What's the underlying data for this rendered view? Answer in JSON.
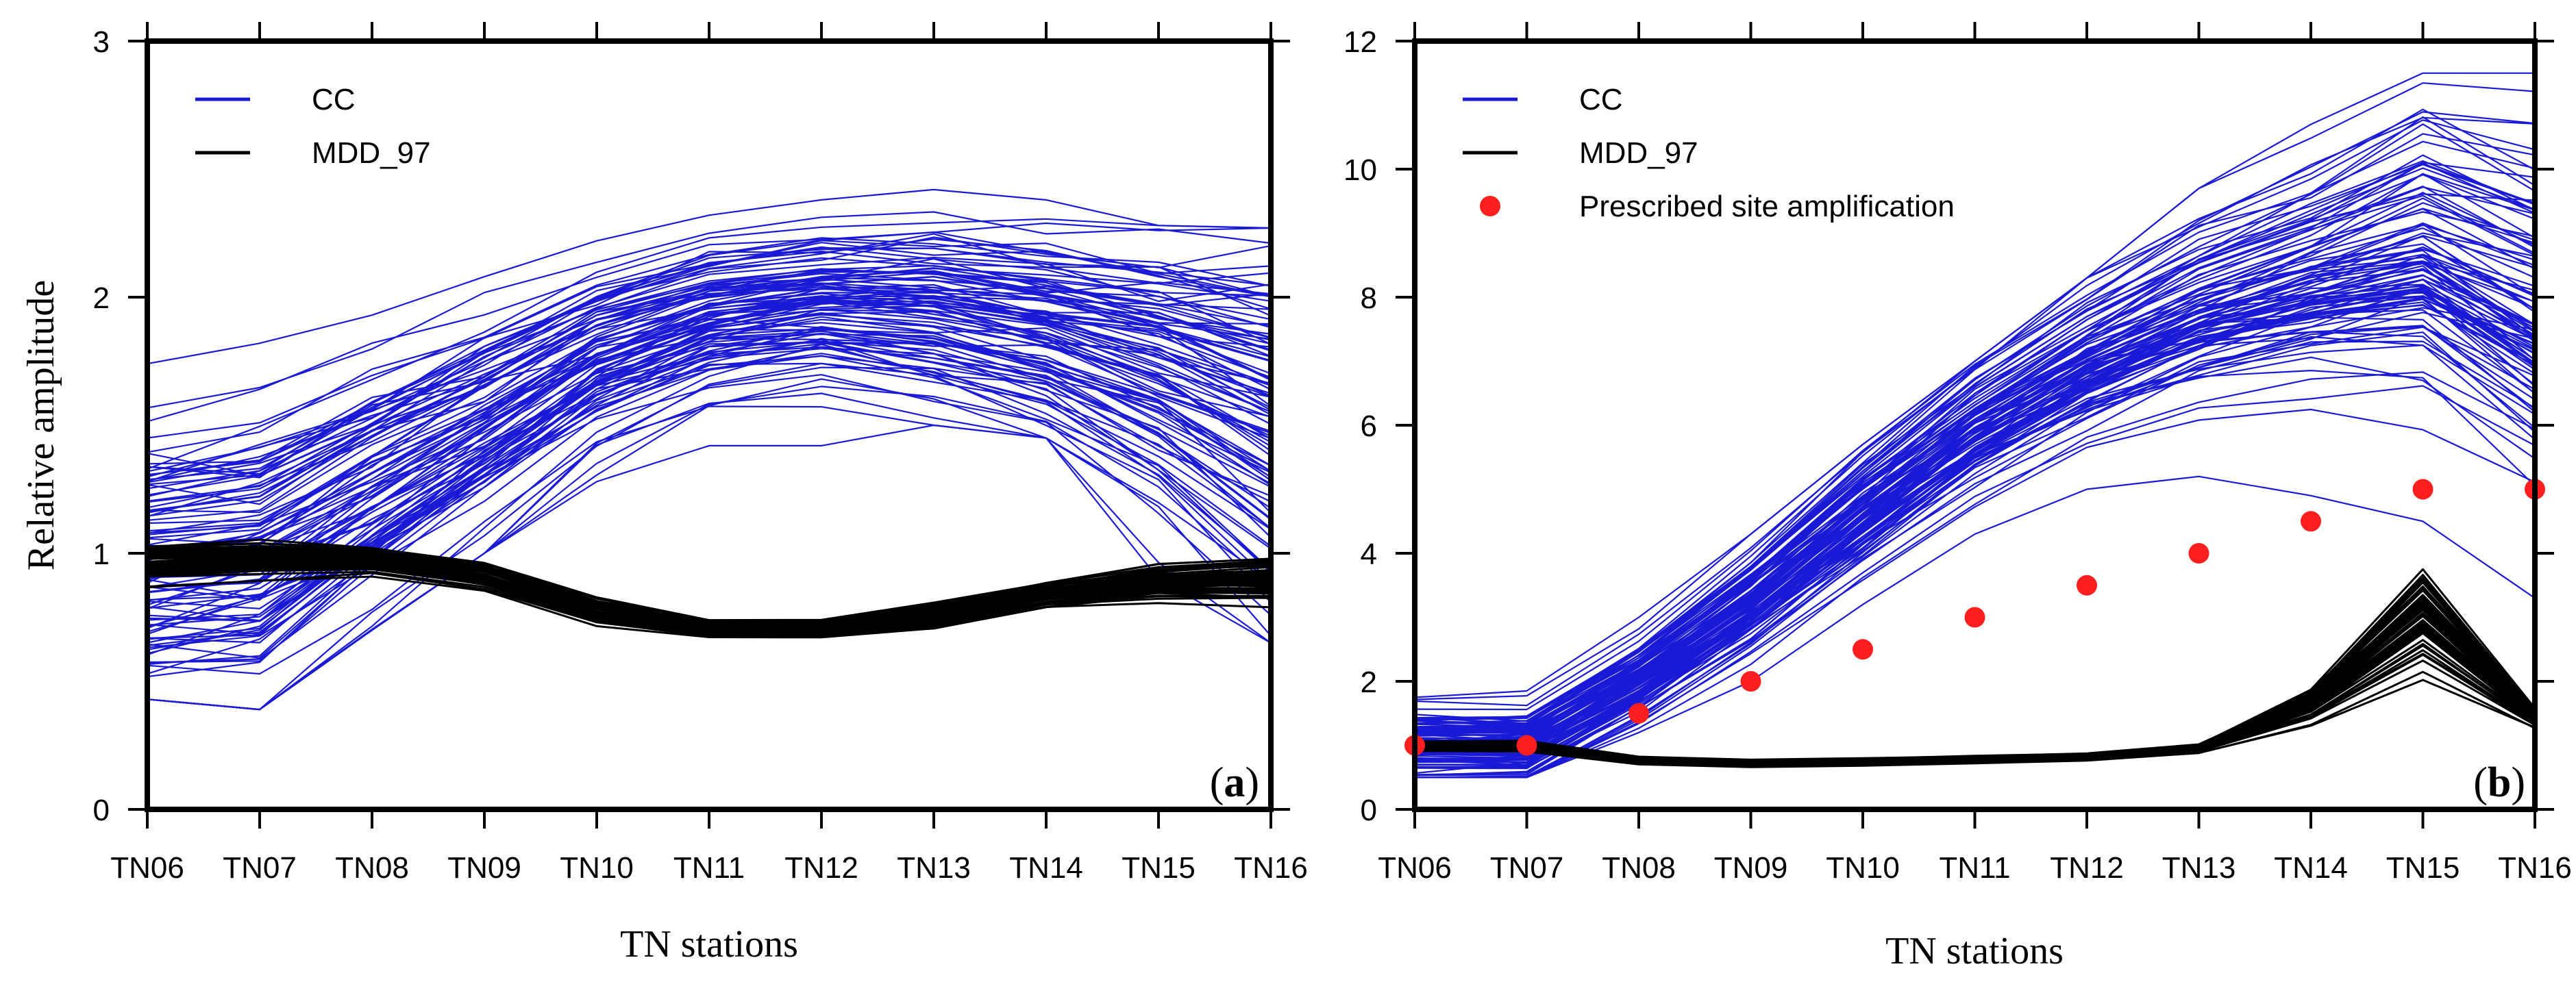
{
  "chart_data": [
    {
      "type": "line",
      "panel_label": "(a)",
      "panel_letter": "a",
      "categories": [
        "TN06",
        "TN07",
        "TN08",
        "TN09",
        "TN10",
        "TN11",
        "TN12",
        "TN13",
        "TN14",
        "TN15",
        "TN16"
      ],
      "ylabel": "Relative amplitude",
      "xlabel": "TN stations",
      "ylim": [
        0,
        3
      ],
      "yticks": [
        0,
        1,
        2,
        3
      ],
      "legend": [
        "CC",
        "MDD_97"
      ],
      "legend_position": "top-left",
      "series_groups": [
        {
          "name": "CC",
          "color": "#1a1ad6",
          "count": 100,
          "mean": [
            1.0,
            1.05,
            1.3,
            1.55,
            1.8,
            1.95,
            2.0,
            1.98,
            1.9,
            1.78,
            1.6
          ],
          "spread": [
            0.32,
            0.35,
            0.3,
            0.25,
            0.2,
            0.17,
            0.17,
            0.2,
            0.22,
            0.28,
            0.38
          ],
          "min": [
            0.43,
            0.39,
            0.7,
            1.0,
            1.28,
            1.42,
            1.42,
            1.5,
            1.45,
            0.9,
            0.65
          ],
          "max": [
            1.74,
            1.82,
            1.93,
            2.08,
            2.22,
            2.32,
            2.38,
            2.42,
            2.38,
            2.28,
            2.27
          ]
        },
        {
          "name": "MDD_97",
          "color": "#000000",
          "count": 60,
          "mean": [
            0.97,
            0.99,
            0.98,
            0.92,
            0.78,
            0.71,
            0.71,
            0.76,
            0.84,
            0.89,
            0.9
          ],
          "spread": [
            0.04,
            0.04,
            0.03,
            0.03,
            0.03,
            0.02,
            0.02,
            0.03,
            0.03,
            0.04,
            0.05
          ]
        }
      ]
    },
    {
      "type": "line",
      "panel_label": "(b)",
      "panel_letter": "b",
      "categories": [
        "TN06",
        "TN07",
        "TN08",
        "TN09",
        "TN10",
        "TN11",
        "TN12",
        "TN13",
        "TN14",
        "TN15",
        "TN16"
      ],
      "ylabel": "",
      "xlabel": "TN stations",
      "ylim": [
        0,
        12
      ],
      "yticks": [
        0,
        2,
        4,
        6,
        8,
        10,
        12
      ],
      "legend": [
        "CC",
        "MDD_97",
        "Prescribed site amplification"
      ],
      "legend_position": "top-left",
      "series_groups": [
        {
          "name": "CC",
          "color": "#1a1ad6",
          "count": 100,
          "mean": [
            1.0,
            1.0,
            2.0,
            3.2,
            4.6,
            5.9,
            6.9,
            7.7,
            8.2,
            8.6,
            7.7
          ],
          "spread": [
            0.3,
            0.3,
            0.35,
            0.45,
            0.55,
            0.6,
            0.7,
            0.8,
            0.95,
            1.2,
            1.4
          ],
          "min": [
            0.5,
            0.5,
            1.2,
            2.0,
            3.2,
            4.3,
            5.0,
            5.2,
            4.9,
            4.5,
            3.3
          ],
          "max": [
            1.75,
            1.85,
            3.0,
            4.3,
            5.7,
            7.0,
            8.3,
            9.7,
            10.7,
            11.5,
            11.5
          ]
        },
        {
          "name": "MDD_97",
          "color": "#000000",
          "count": 60,
          "mean": [
            0.98,
            0.98,
            0.76,
            0.72,
            0.74,
            0.78,
            0.82,
            0.95,
            1.6,
            2.9,
            1.42
          ],
          "spread": [
            0.04,
            0.04,
            0.03,
            0.03,
            0.03,
            0.03,
            0.03,
            0.04,
            0.15,
            0.45,
            0.08
          ]
        },
        {
          "name": "Prescribed site amplification",
          "color": "#ff1f1f",
          "marker": "circle",
          "values": [
            1.0,
            1.0,
            1.5,
            2.0,
            2.5,
            3.0,
            3.5,
            4.0,
            4.5,
            5.0,
            5.0
          ]
        }
      ]
    }
  ]
}
